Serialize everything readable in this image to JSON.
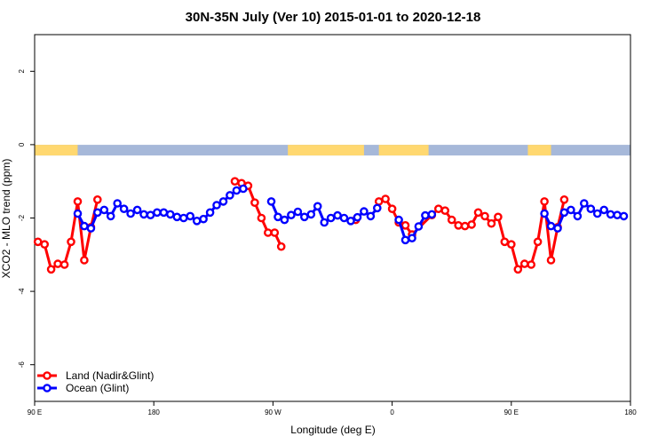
{
  "chart_data": {
    "type": "line",
    "title": "30N-35N July (Ver 10)   2015-01-01 to 2020-12-18",
    "xlabel": "Longitude (deg E)",
    "ylabel": "XCO2 - MLO trend (ppm)",
    "xlim": [
      90,
      450
    ],
    "ylim": [
      -7,
      3
    ],
    "x_ticks": [
      {
        "value": 90,
        "label": "90 E"
      },
      {
        "value": 162,
        "label": "180"
      },
      {
        "value": 234,
        "label": "90 W"
      },
      {
        "value": 306,
        "label": "0"
      },
      {
        "value": 378,
        "label": "90 E"
      },
      {
        "value": 450,
        "label": "180"
      }
    ],
    "y_ticks": [
      -6,
      -4,
      -2,
      0,
      2
    ],
    "legend_position": "bottom-left",
    "series": [
      {
        "name": "Land (Nadir&Glint)",
        "color": "#ff0000",
        "segments": [
          [
            [
              92,
              -2.65
            ],
            [
              96,
              -2.72
            ],
            [
              100,
              -3.4
            ],
            [
              104,
              -3.25
            ],
            [
              108,
              -3.27
            ],
            [
              112,
              -2.65
            ],
            [
              116,
              -1.55
            ],
            [
              120,
              -3.15
            ],
            [
              124,
              -2.25
            ],
            [
              128,
              -1.5
            ]
          ],
          [
            [
              211,
              -1.0
            ],
            [
              215,
              -1.05
            ],
            [
              219,
              -1.12
            ],
            [
              223,
              -1.58
            ],
            [
              227,
              -2.0
            ],
            [
              231,
              -2.4
            ],
            [
              235,
              -2.4
            ],
            [
              239,
              -2.78
            ]
          ],
          [
            [
              284,
              -2.05
            ]
          ],
          [
            [
              298,
              -1.55
            ],
            [
              302,
              -1.48
            ],
            [
              306,
              -1.75
            ],
            [
              310,
              -2.12
            ],
            [
              314,
              -2.2
            ],
            [
              318,
              -2.45
            ],
            [
              330,
              -1.92
            ],
            [
              334,
              -1.75
            ],
            [
              338,
              -1.8
            ],
            [
              342,
              -2.05
            ],
            [
              346,
              -2.2
            ],
            [
              350,
              -2.22
            ],
            [
              354,
              -2.18
            ],
            [
              358,
              -1.85
            ],
            [
              362,
              -1.95
            ],
            [
              366,
              -2.15
            ],
            [
              370,
              -1.97
            ],
            [
              374,
              -2.65
            ],
            [
              378,
              -2.72
            ],
            [
              382,
              -3.4
            ],
            [
              386,
              -3.25
            ],
            [
              390,
              -3.27
            ],
            [
              394,
              -2.65
            ],
            [
              398,
              -1.55
            ],
            [
              402,
              -3.15
            ],
            [
              406,
              -2.25
            ],
            [
              410,
              -1.5
            ]
          ]
        ]
      },
      {
        "name": "Ocean (Glint)",
        "color": "#0000ff",
        "segments": [
          [
            [
              116,
              -1.88
            ],
            [
              120,
              -2.22
            ],
            [
              124,
              -2.28
            ],
            [
              128,
              -1.85
            ],
            [
              132,
              -1.78
            ],
            [
              136,
              -1.95
            ],
            [
              140,
              -1.6
            ],
            [
              144,
              -1.75
            ],
            [
              148,
              -1.88
            ],
            [
              152,
              -1.78
            ],
            [
              156,
              -1.9
            ],
            [
              160,
              -1.92
            ],
            [
              164,
              -1.85
            ],
            [
              168,
              -1.85
            ],
            [
              172,
              -1.9
            ],
            [
              176,
              -1.97
            ],
            [
              180,
              -2.0
            ],
            [
              184,
              -1.95
            ],
            [
              188,
              -2.08
            ],
            [
              192,
              -2.03
            ],
            [
              196,
              -1.85
            ],
            [
              200,
              -1.65
            ],
            [
              204,
              -1.55
            ],
            [
              208,
              -1.38
            ],
            [
              212,
              -1.25
            ],
            [
              216,
              -1.2
            ]
          ],
          [
            [
              233,
              -1.55
            ],
            [
              237,
              -1.97
            ],
            [
              241,
              -2.05
            ],
            [
              245,
              -1.92
            ],
            [
              249,
              -1.83
            ],
            [
              253,
              -1.97
            ],
            [
              257,
              -1.9
            ],
            [
              261,
              -1.68
            ],
            [
              265,
              -2.12
            ],
            [
              269,
              -2.0
            ],
            [
              273,
              -1.93
            ],
            [
              277,
              -2.0
            ],
            [
              281,
              -2.08
            ],
            [
              285,
              -1.98
            ],
            [
              289,
              -1.82
            ],
            [
              293,
              -1.95
            ],
            [
              297,
              -1.73
            ]
          ],
          [
            [
              310,
              -2.05
            ],
            [
              314,
              -2.6
            ],
            [
              318,
              -2.55
            ],
            [
              322,
              -2.23
            ],
            [
              326,
              -1.93
            ],
            [
              330,
              -1.9
            ]
          ],
          [
            [
              398,
              -1.88
            ],
            [
              402,
              -2.22
            ],
            [
              406,
              -2.28
            ],
            [
              410,
              -1.85
            ],
            [
              414,
              -1.78
            ],
            [
              418,
              -1.95
            ],
            [
              422,
              -1.6
            ],
            [
              426,
              -1.75
            ],
            [
              430,
              -1.88
            ],
            [
              434,
              -1.78
            ],
            [
              438,
              -1.9
            ],
            [
              442,
              -1.92
            ],
            [
              446,
              -1.95
            ]
          ]
        ]
      }
    ],
    "surface_strip": {
      "y_center": -0.15,
      "land_color": "#ffd870",
      "ocean_color": "#a6b8d9",
      "land_ranges": [
        [
          90,
          116
        ],
        [
          243,
          289
        ],
        [
          298,
          328
        ],
        [
          388,
          402
        ]
      ]
    }
  }
}
